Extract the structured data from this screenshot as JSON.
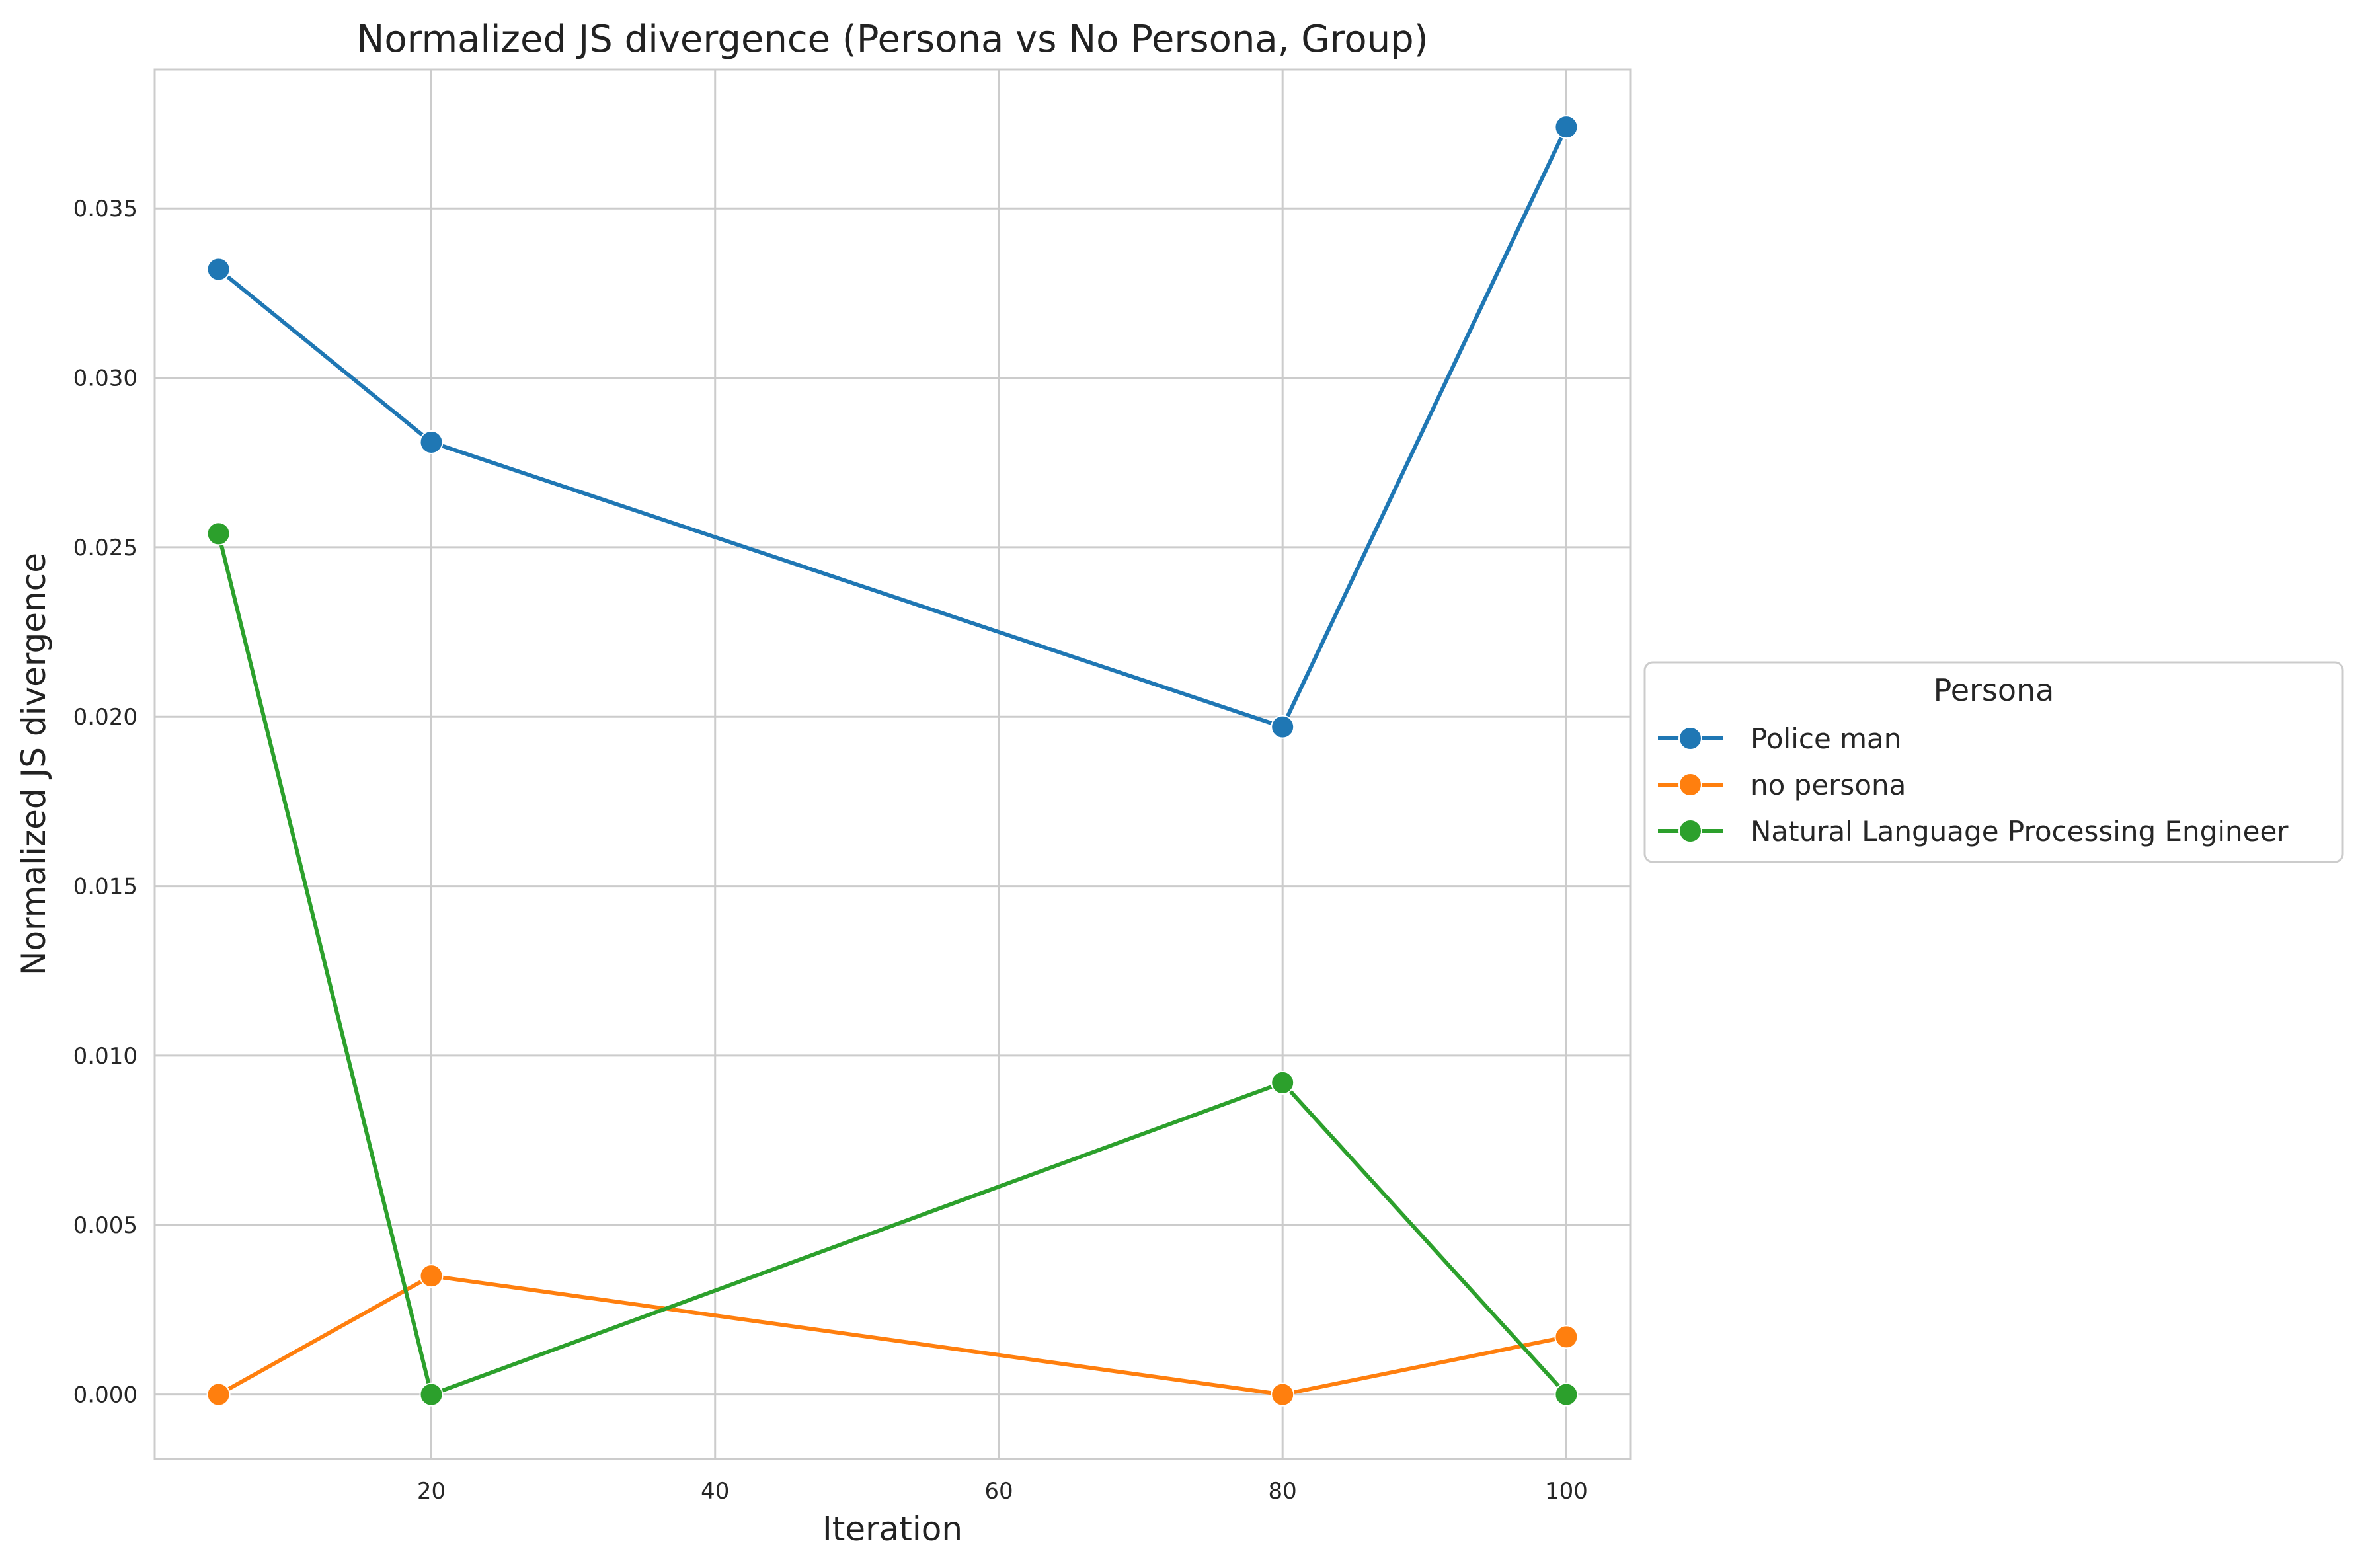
{
  "chart_data": {
    "type": "line",
    "title": "Normalized JS divergence (Persona vs No Persona, Group)",
    "xlabel": "Iteration",
    "ylabel": "Normalized JS divergence",
    "xlim": [
      0.5,
      104.5
    ],
    "ylim": [
      -0.0019,
      0.0391
    ],
    "x_ticks": [
      20,
      40,
      60,
      80,
      100
    ],
    "y_ticks": [
      0.0,
      0.005,
      0.01,
      0.015,
      0.02,
      0.025,
      0.03,
      0.035
    ],
    "y_tick_labels": [
      "0.000",
      "0.005",
      "0.010",
      "0.015",
      "0.020",
      "0.025",
      "0.030",
      "0.035"
    ],
    "grid": true,
    "legend_title": "Persona",
    "legend_position": "center-right outside",
    "x": [
      5,
      20,
      80,
      100
    ],
    "series": [
      {
        "name": "Police man",
        "color": "#1f77b4",
        "values": [
          0.0332,
          0.0281,
          0.0197,
          0.0374
        ]
      },
      {
        "name": "no persona",
        "color": "#ff7f0e",
        "values": [
          0.0,
          0.0035,
          0.0,
          0.0017
        ]
      },
      {
        "name": "Natural Language Processing Engineer",
        "color": "#2ca02c",
        "values": [
          0.0254,
          0.0,
          0.0092,
          0.0
        ]
      }
    ]
  }
}
